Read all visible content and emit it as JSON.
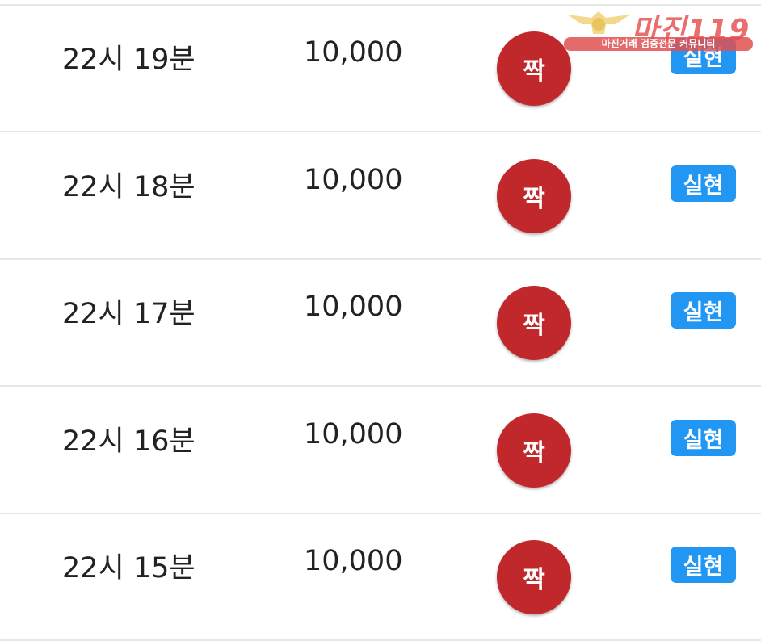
{
  "rows": [
    {
      "time": "22시 19분",
      "amount": "10,000",
      "result": "짝",
      "status": "실현"
    },
    {
      "time": "22시 18분",
      "amount": "10,000",
      "result": "짝",
      "status": "실현"
    },
    {
      "time": "22시 17분",
      "amount": "10,000",
      "result": "짝",
      "status": "실현"
    },
    {
      "time": "22시 16분",
      "amount": "10,000",
      "result": "짝",
      "status": "실현"
    },
    {
      "time": "22시 15분",
      "amount": "10,000",
      "result": "짝",
      "status": "실현"
    }
  ],
  "watermark": {
    "title": "마진119",
    "subtitle": "마진거래 검증전문 커뮤니티"
  },
  "colors": {
    "result_ball": "#c0282b",
    "status_badge": "#2196f3",
    "watermark": "#e95f5f"
  }
}
